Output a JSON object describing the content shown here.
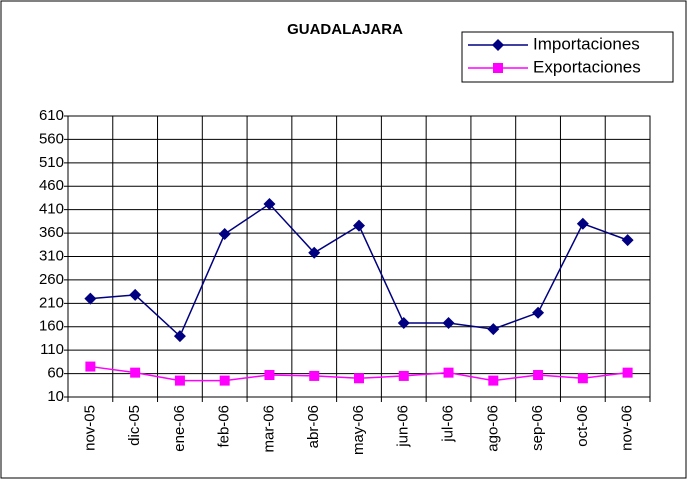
{
  "chart_data": {
    "type": "line",
    "title": "GUADALAJARA",
    "categories": [
      "nov-05",
      "dic-05",
      "ene-06",
      "feb-06",
      "mar-06",
      "abr-06",
      "may-06",
      "jun-06",
      "jul-06",
      "ago-06",
      "sep-06",
      "oct-06",
      "nov-06"
    ],
    "series": [
      {
        "name": "Importaciones",
        "color": "#000080",
        "marker": "diamond",
        "values": [
          220,
          228,
          140,
          358,
          422,
          318,
          376,
          168,
          168,
          155,
          190,
          380,
          345
        ]
      },
      {
        "name": "Exportaciones",
        "color": "#ff00ff",
        "marker": "square",
        "values": [
          75,
          62,
          45,
          45,
          57,
          55,
          50,
          55,
          62,
          45,
          57,
          50,
          62
        ]
      }
    ],
    "ylim": [
      10,
      610
    ],
    "yticks": [
      10,
      60,
      110,
      160,
      210,
      260,
      310,
      360,
      410,
      460,
      510,
      560,
      610
    ],
    "grid": true,
    "legend": "top-right"
  }
}
